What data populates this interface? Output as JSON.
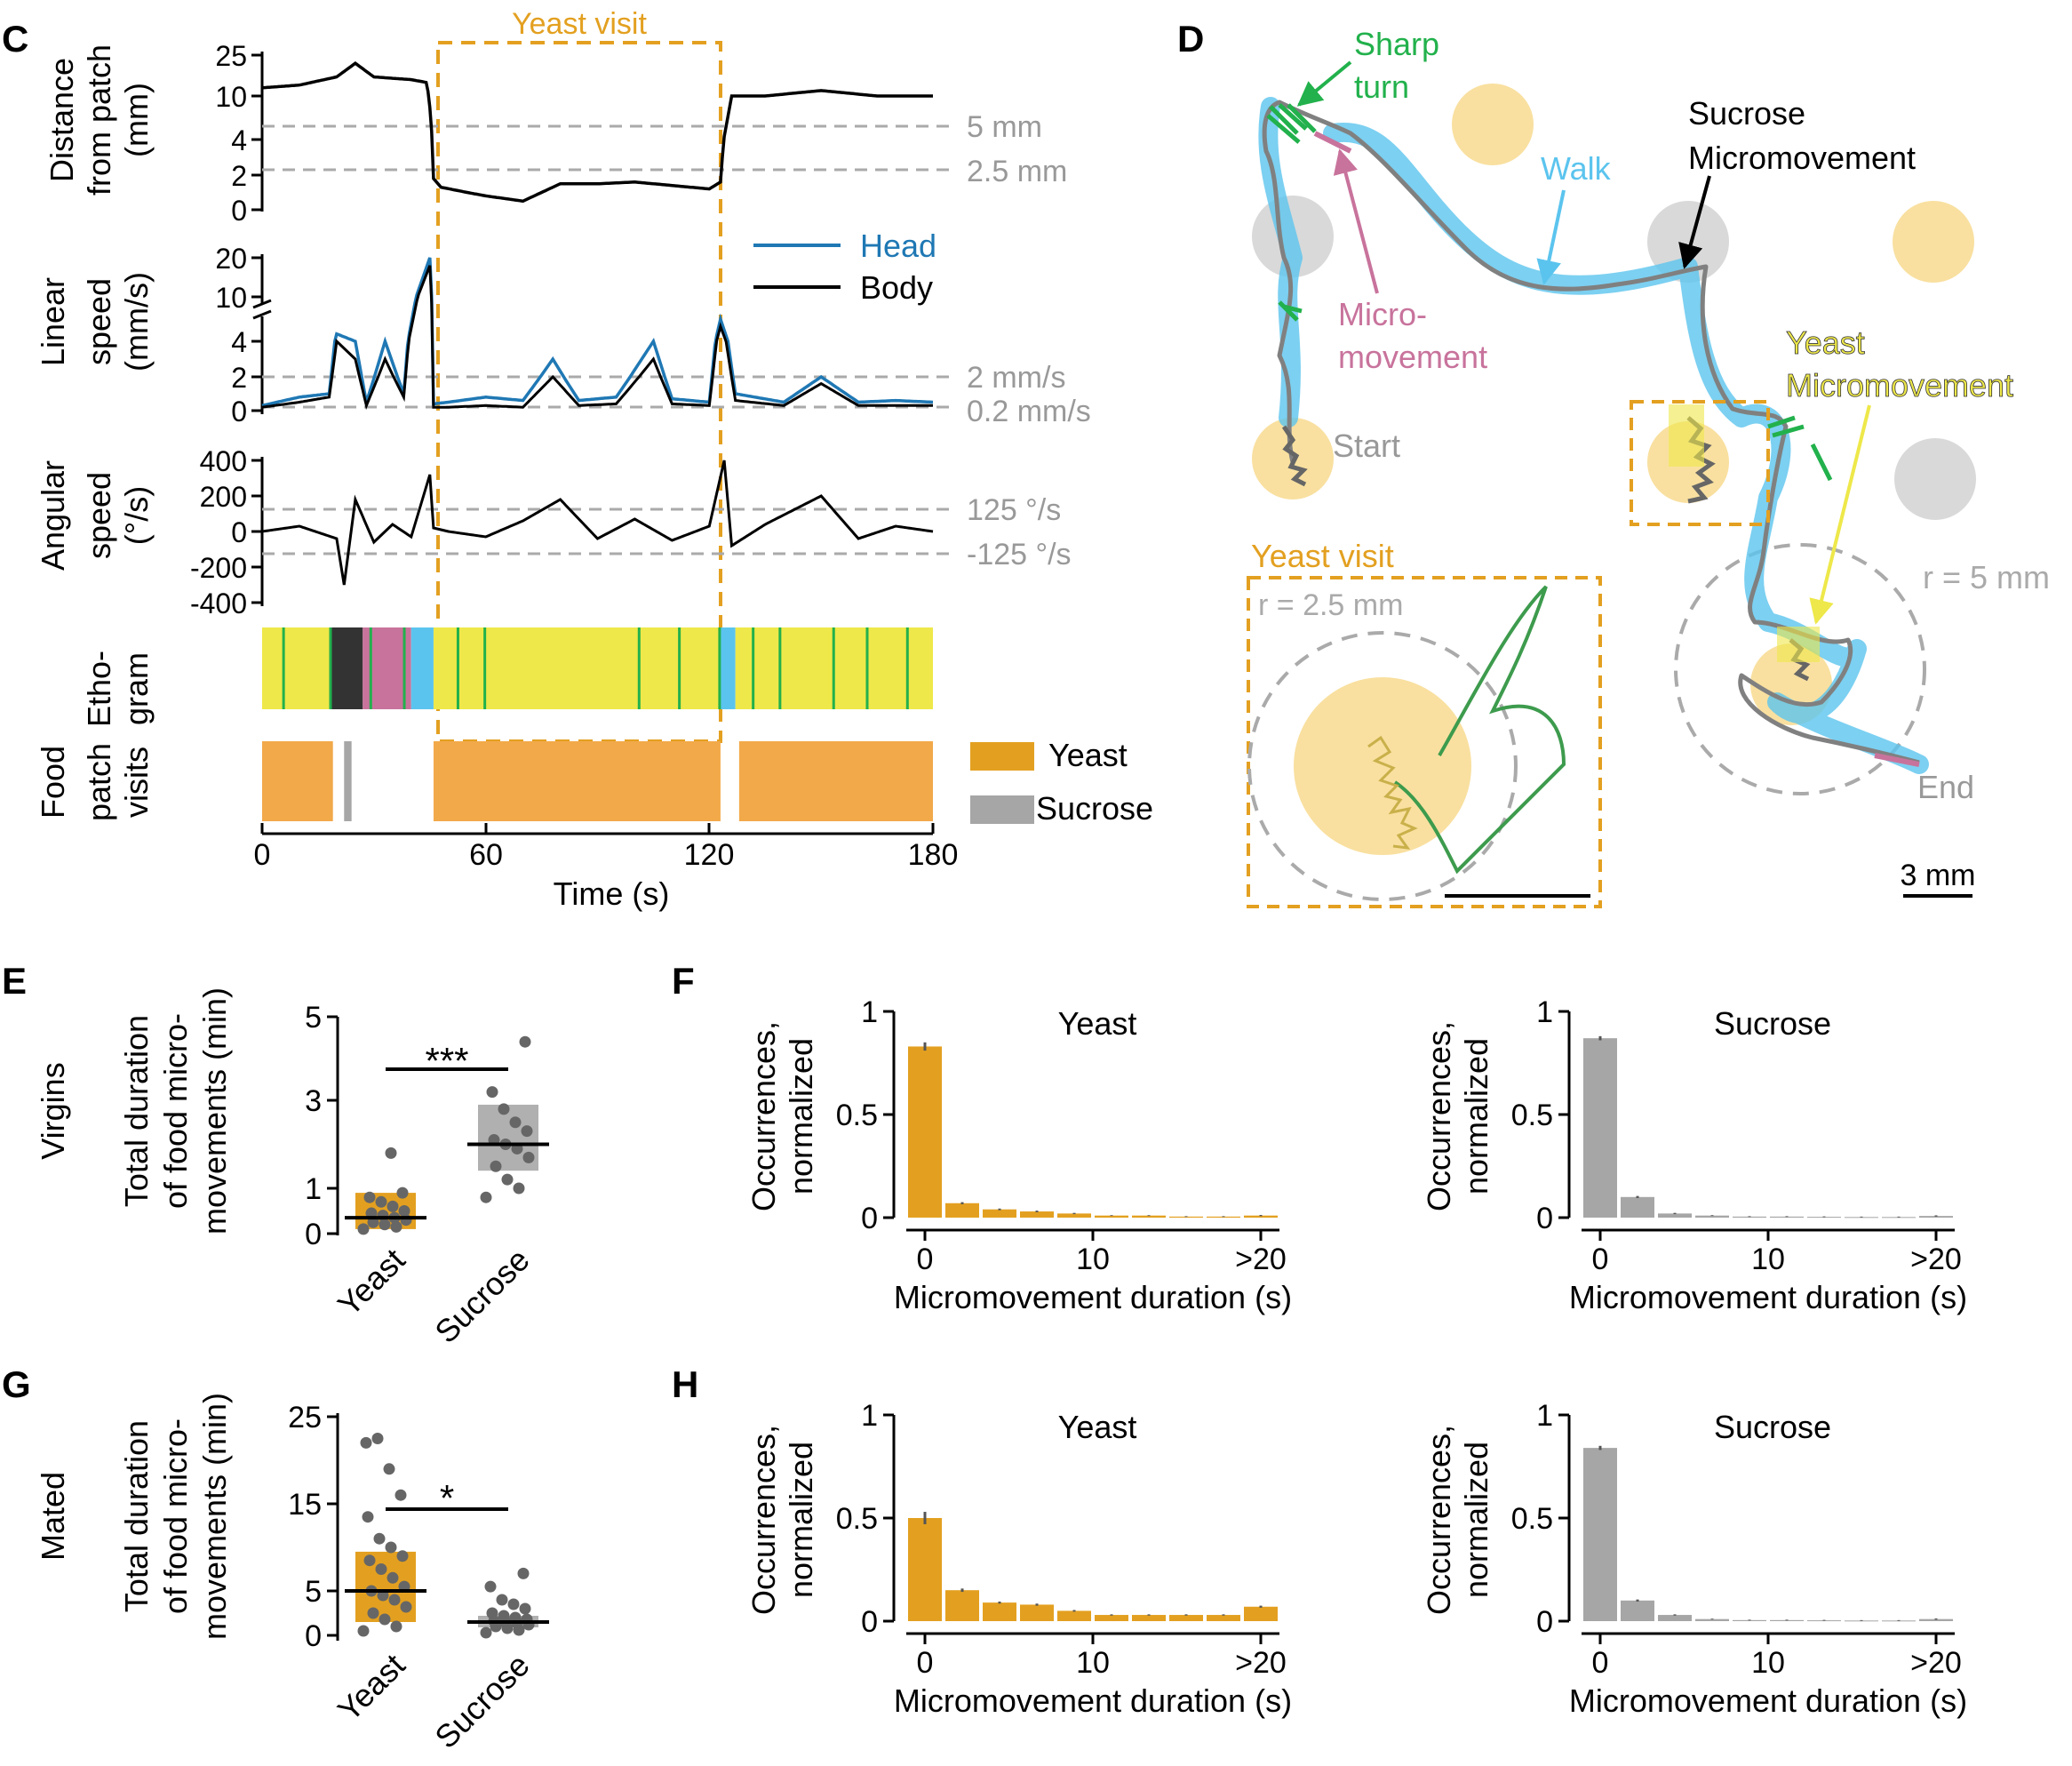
{
  "colors": {
    "yeast": "#E3A020",
    "yeast_light": "#F2A94A",
    "sucrose": "#A6A6A6",
    "head": "#1F78B4",
    "walk": "#5BC4EE",
    "sharp_turn": "#22B14C",
    "micromovement": "#C8739C",
    "yeast_patch": "#F9E0A0",
    "sucrose_patch": "#D9D9D9",
    "ethogram_yellow": "#EEE84A",
    "ref_line": "#AAAAAA",
    "point": "#666666",
    "path": "#808080"
  },
  "panels": {
    "C": {
      "label": "C",
      "yeast_visit_label": "Yeast visit",
      "distance": {
        "ylabel": [
          "Distance",
          "from patch",
          "(mm)"
        ],
        "ticks": [
          "25",
          "10",
          "4",
          "2",
          "0"
        ],
        "ref_lines": [
          "5 mm",
          "2.5 mm"
        ]
      },
      "linear": {
        "ylabel": [
          "Linear",
          "speed",
          "(mm/s)"
        ],
        "ticks": [
          "20",
          "10",
          "4",
          "2",
          "0"
        ],
        "ref_lines": [
          "2 mm/s",
          "0.2 mm/s"
        ],
        "legend": [
          "Head",
          "Body"
        ]
      },
      "angular": {
        "ylabel": [
          "Angular",
          "speed",
          "(°/s)"
        ],
        "ticks": [
          "400",
          "200",
          "0",
          "-200",
          "-400"
        ],
        "ref_lines": [
          "125 °/s",
          "-125 °/s"
        ]
      },
      "ethogram": {
        "ylabel": [
          "Etho-",
          "gram"
        ]
      },
      "food": {
        "ylabel": [
          "Food",
          "patch",
          "visits"
        ],
        "legend": [
          "Yeast",
          "Sucrose"
        ]
      },
      "xaxis": {
        "ticks": [
          "0",
          "60",
          "120",
          "180"
        ],
        "label": "Time (s)"
      }
    },
    "D": {
      "label": "D",
      "annotations": {
        "sharp_turn": [
          "Sharp",
          "turn"
        ],
        "walk": "Walk",
        "sucrose_mm": [
          "Sucrose",
          "Micromovement"
        ],
        "micro": [
          "Micro-",
          "movement"
        ],
        "yeast_mm": [
          "Yeast",
          "Micromovement"
        ],
        "start": "Start",
        "end": "End",
        "r5": "r = 5 mm",
        "yeast_visit": "Yeast visit",
        "r25": "r = 2.5 mm",
        "scale": "3 mm"
      }
    },
    "E": {
      "label": "E",
      "row_label": "Virgins",
      "sig": "***"
    },
    "F": {
      "label": "F"
    },
    "G": {
      "label": "G",
      "row_label": "Mated",
      "sig": "*"
    },
    "H": {
      "label": "H"
    },
    "dot_ylabel": [
      "Total duration",
      "of food micro-",
      "movements (min)"
    ],
    "hist_ylabel": [
      "Occurrences,",
      "normalized"
    ],
    "hist_xlabel": "Micromovement duration (s)",
    "hist_xticks": [
      "0",
      "10",
      ">20"
    ]
  },
  "chart_data": [
    {
      "id": "C-distance",
      "type": "line",
      "x_unit": "s",
      "xlim": [
        0,
        180
      ],
      "ylim": [
        0,
        25
      ],
      "y_ticks": [
        0,
        2,
        4,
        10,
        25
      ],
      "ref_lines": [
        5,
        2.5
      ],
      "highlight": {
        "label": "Yeast visit",
        "x": [
          46,
          123
        ]
      },
      "series": [
        {
          "x": [
            0,
            10,
            20,
            25,
            30,
            40,
            44,
            46,
            48,
            55,
            60,
            70,
            80,
            90,
            100,
            110,
            120,
            123,
            126,
            135,
            150,
            165,
            180
          ],
          "y": [
            13,
            14,
            17,
            22,
            17,
            16,
            15,
            1.8,
            1.3,
            1.0,
            0.8,
            0.5,
            1.5,
            1.5,
            1.6,
            1.4,
            1.2,
            1.6,
            10,
            10,
            12,
            10,
            10
          ]
        }
      ]
    },
    {
      "id": "C-linear-speed",
      "type": "line",
      "x_unit": "s",
      "xlim": [
        0,
        180
      ],
      "ylim": [
        0,
        20
      ],
      "y_ticks": [
        0,
        2,
        4,
        10,
        20
      ],
      "ref_lines": [
        2,
        0.2
      ],
      "series": [
        {
          "name": "Head",
          "x": [
            0,
            10,
            18,
            20,
            25,
            28,
            33,
            38,
            45,
            46,
            50,
            60,
            70,
            78,
            85,
            95,
            105,
            110,
            120,
            123,
            127,
            140,
            150,
            160,
            170,
            180
          ],
          "y": [
            0.3,
            0.8,
            1,
            5,
            4,
            0.5,
            4,
            1,
            20,
            0.4,
            0.5,
            0.8,
            0.6,
            3,
            0.6,
            0.8,
            4,
            0.7,
            0.5,
            7,
            1,
            0.5,
            2,
            0.5,
            0.6,
            0.5
          ]
        },
        {
          "name": "Body",
          "x": [
            0,
            10,
            18,
            20,
            25,
            28,
            33,
            38,
            45,
            46,
            50,
            60,
            70,
            78,
            85,
            95,
            105,
            110,
            120,
            123,
            127,
            140,
            150,
            160,
            170,
            180
          ],
          "y": [
            0.2,
            0.5,
            0.8,
            4,
            3,
            0.3,
            3,
            0.8,
            18,
            0.2,
            0.2,
            0.3,
            0.2,
            2,
            0.3,
            0.4,
            3,
            0.4,
            0.3,
            6,
            0.6,
            0.3,
            1.6,
            0.3,
            0.3,
            0.3
          ]
        }
      ]
    },
    {
      "id": "C-angular-speed",
      "type": "line",
      "x_unit": "s",
      "xlim": [
        0,
        180
      ],
      "ylim": [
        -400,
        400
      ],
      "y_ticks": [
        -400,
        -200,
        0,
        200,
        400
      ],
      "ref_lines": [
        125,
        -125
      ],
      "series": [
        {
          "x": [
            0,
            10,
            20,
            22,
            25,
            30,
            35,
            40,
            45,
            46,
            50,
            60,
            70,
            80,
            90,
            100,
            110,
            120,
            124,
            126,
            135,
            150,
            160,
            170,
            180
          ],
          "y": [
            0,
            30,
            -40,
            -300,
            180,
            -60,
            40,
            -30,
            320,
            20,
            0,
            -30,
            60,
            180,
            -40,
            70,
            -50,
            30,
            400,
            -80,
            40,
            200,
            -40,
            30,
            0
          ]
        }
      ]
    },
    {
      "id": "C-ethogram",
      "type": "heatmap",
      "x_unit": "s",
      "xlim": [
        0,
        180
      ],
      "categories": [
        "Walk",
        "Sharp turn",
        "Micromovement",
        "Yeast micromovement",
        "Sucrose micromovement"
      ],
      "segments": [
        {
          "start": 0,
          "end": 18,
          "state": "Yeast micromovement"
        },
        {
          "start": 18,
          "end": 27,
          "state": "Sucrose micromovement"
        },
        {
          "start": 27,
          "end": 40,
          "state": "Micromovement"
        },
        {
          "start": 40,
          "end": 46,
          "state": "Walk"
        },
        {
          "start": 46,
          "end": 123,
          "state": "Yeast micromovement"
        },
        {
          "start": 123,
          "end": 127,
          "state": "Walk"
        },
        {
          "start": 127,
          "end": 180,
          "state": "Yeast micromovement"
        }
      ]
    },
    {
      "id": "C-food-patch-visits",
      "type": "bar",
      "x_unit": "s",
      "xlim": [
        0,
        180
      ],
      "legend": [
        "Yeast",
        "Sucrose"
      ],
      "visits": [
        {
          "start": 0,
          "end": 19,
          "food": "Yeast"
        },
        {
          "start": 22,
          "end": 24,
          "food": "Sucrose"
        },
        {
          "start": 46,
          "end": 123,
          "food": "Yeast"
        },
        {
          "start": 128,
          "end": 180,
          "food": "Yeast"
        }
      ]
    },
    {
      "id": "E",
      "type": "scatter",
      "title": "",
      "row_label": "Virgins",
      "categories": [
        "Yeast",
        "Sucrose"
      ],
      "ylim": [
        0,
        5
      ],
      "y_ticks": [
        0,
        1,
        3,
        5
      ],
      "medians": [
        0.35,
        2.0
      ],
      "iqr": [
        [
          0.1,
          0.9
        ],
        [
          1.4,
          2.9
        ]
      ],
      "significance": "***",
      "points": [
        [
          0.1,
          0.15,
          0.2,
          0.25,
          0.3,
          0.35,
          0.4,
          0.45,
          0.5,
          0.6,
          0.7,
          0.8,
          0.9,
          1.8
        ],
        [
          0.8,
          1.0,
          1.2,
          1.5,
          1.7,
          1.9,
          2.0,
          2.1,
          2.3,
          2.5,
          2.8,
          3.2,
          4.4
        ]
      ]
    },
    {
      "id": "G",
      "type": "scatter",
      "title": "",
      "row_label": "Mated",
      "categories": [
        "Yeast",
        "Sucrose"
      ],
      "ylim": [
        0,
        25
      ],
      "y_ticks": [
        0,
        5,
        15,
        25
      ],
      "medians": [
        5,
        1.5
      ],
      "iqr": [
        [
          1.5,
          9.5
        ],
        [
          0.9,
          2.2
        ]
      ],
      "significance": "*",
      "points": [
        [
          0.5,
          1.0,
          1.8,
          2.5,
          3.2,
          4.0,
          4.5,
          5.0,
          5.5,
          6.5,
          7.5,
          8.5,
          9.0,
          10.0,
          11.0,
          13.5,
          16.0,
          19.0,
          22.5,
          22.0
        ],
        [
          0.3,
          0.6,
          0.8,
          1.0,
          1.2,
          1.4,
          1.5,
          1.6,
          1.8,
          2.0,
          2.2,
          2.5,
          3.0,
          3.5,
          4.0,
          5.5,
          7.0
        ]
      ]
    },
    {
      "id": "F-yeast",
      "type": "bar",
      "title": "Yeast",
      "xlabel": "Micromovement duration (s)",
      "ylabel": "Occurrences, normalized",
      "x_ticks": [
        "0",
        "10",
        ">20"
      ],
      "ylim": [
        0,
        1
      ],
      "values": [
        0.83,
        0.07,
        0.04,
        0.03,
        0.02,
        0.01,
        0.01,
        0.005,
        0.005,
        0.01
      ],
      "errors": [
        0.02,
        0.005,
        0.004,
        0.004,
        0.003,
        0.002,
        0.002,
        0.002,
        0.002,
        0.003
      ]
    },
    {
      "id": "F-sucrose",
      "type": "bar",
      "title": "Sucrose",
      "xlabel": "Micromovement duration (s)",
      "ylabel": "Occurrences, normalized",
      "x_ticks": [
        "0",
        "10",
        ">20"
      ],
      "ylim": [
        0,
        1
      ],
      "values": [
        0.87,
        0.1,
        0.02,
        0.01,
        0.005,
        0.005,
        0.004,
        0.003,
        0.003,
        0.008
      ],
      "errors": [
        0.01,
        0.005,
        0.003,
        0.002,
        0.002,
        0.002,
        0.002,
        0.002,
        0.002,
        0.003
      ]
    },
    {
      "id": "H-yeast",
      "type": "bar",
      "title": "Yeast",
      "xlabel": "Micromovement duration (s)",
      "ylabel": "Occurrences, normalized",
      "x_ticks": [
        "0",
        "10",
        ">20"
      ],
      "ylim": [
        0,
        1
      ],
      "values": [
        0.5,
        0.15,
        0.09,
        0.08,
        0.05,
        0.03,
        0.03,
        0.03,
        0.03,
        0.07
      ],
      "errors": [
        0.03,
        0.008,
        0.005,
        0.005,
        0.004,
        0.003,
        0.003,
        0.003,
        0.003,
        0.005
      ]
    },
    {
      "id": "H-sucrose",
      "type": "bar",
      "title": "Sucrose",
      "xlabel": "Micromovement duration (s)",
      "ylabel": "Occurrences, normalized",
      "x_ticks": [
        "0",
        "10",
        ">20"
      ],
      "ylim": [
        0,
        1
      ],
      "values": [
        0.84,
        0.1,
        0.03,
        0.01,
        0.005,
        0.005,
        0.004,
        0.003,
        0.003,
        0.01
      ],
      "errors": [
        0.01,
        0.005,
        0.003,
        0.002,
        0.002,
        0.002,
        0.002,
        0.002,
        0.002,
        0.003
      ]
    }
  ]
}
